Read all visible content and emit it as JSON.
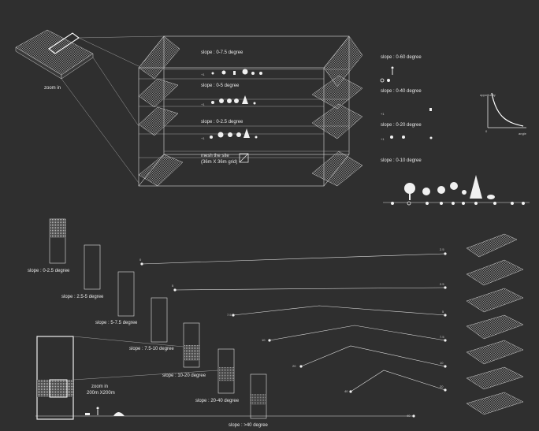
{
  "site_label": "zoom in",
  "box": {
    "levels": [
      {
        "slope": "slope : 0-7.5 degree"
      },
      {
        "slope": "slope : 0-5 degree"
      },
      {
        "slope": "slope : 0-2.5 degree"
      }
    ],
    "mesh_label_1": "mesh the site",
    "mesh_label_2": "(36m X 36m grid)",
    "small_plus": "+1"
  },
  "legend": {
    "slopes": [
      "slope : 0-60 degree",
      "slope : 0-40 degree",
      "slope : 0-20 degree",
      "slope : 0-10 degree"
    ],
    "plus": "+1",
    "graph_y": "opportunity",
    "graph_x": "angle",
    "graph_origin": "0"
  },
  "bottom": {
    "zoom_label_1": "zoom in",
    "zoom_label_2": "200m X200m",
    "slopes": [
      "slope : 0-2.5 degree",
      "slope : 2.5-5 degree",
      "slope : 5-7.5 degree",
      "slope : 7.5-10 degree",
      "slope : 10-20 degree",
      "slope : 20-40 degree",
      "slope : >40 degree"
    ],
    "left_values": [
      "0",
      "5",
      "7.5",
      "10",
      "20",
      "40",
      "40"
    ],
    "right_values": [
      "2.5",
      "2.5",
      "5",
      "7.5",
      "10",
      "20",
      ""
    ]
  }
}
